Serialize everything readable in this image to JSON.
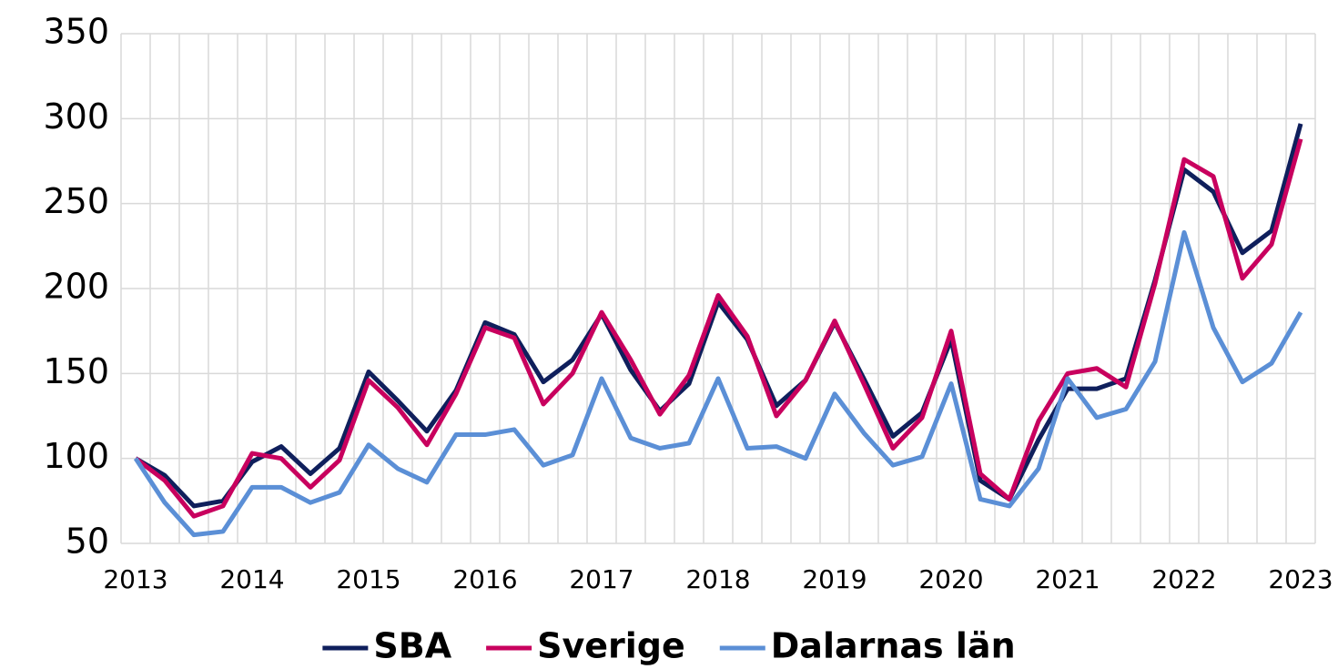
{
  "chart_data": {
    "type": "line",
    "categories": [
      "2013",
      null,
      null,
      null,
      "2014",
      null,
      null,
      null,
      "2015",
      null,
      null,
      null,
      "2016",
      null,
      null,
      null,
      "2017",
      null,
      null,
      null,
      "2018",
      null,
      null,
      null,
      "2019",
      null,
      null,
      null,
      "2020",
      null,
      null,
      null,
      "2021",
      null,
      null,
      null,
      "2022",
      null,
      null,
      null,
      "2023"
    ],
    "series": [
      {
        "name": "SBA",
        "color": "#0f1f5c",
        "values": [
          100,
          90,
          72,
          75,
          98,
          107,
          91,
          106,
          151,
          134,
          116,
          140,
          180,
          173,
          145,
          158,
          185,
          152,
          128,
          144,
          192,
          170,
          131,
          146,
          180,
          147,
          113,
          127,
          170,
          87,
          76,
          111,
          141,
          141,
          147,
          205,
          270,
          257,
          221,
          234,
          297
        ]
      },
      {
        "name": "Sverige",
        "color": "#c8005e",
        "values": [
          100,
          87,
          66,
          72,
          103,
          100,
          83,
          99,
          146,
          130,
          108,
          138,
          177,
          171,
          132,
          150,
          186,
          158,
          126,
          149,
          196,
          172,
          125,
          146,
          181,
          144,
          106,
          124,
          175,
          91,
          76,
          122,
          150,
          153,
          142,
          203,
          276,
          266,
          206,
          226,
          288
        ]
      },
      {
        "name": "Dalarnas län",
        "color": "#5b8fd6",
        "values": [
          100,
          74,
          55,
          57,
          83,
          83,
          74,
          80,
          108,
          94,
          86,
          114,
          114,
          117,
          96,
          102,
          147,
          112,
          106,
          109,
          147,
          106,
          107,
          100,
          138,
          115,
          96,
          101,
          144,
          76,
          72,
          94,
          147,
          124,
          129,
          157,
          233,
          177,
          145,
          156,
          186
        ]
      }
    ],
    "ylim": [
      50,
      350
    ],
    "yticks": [
      50,
      100,
      150,
      200,
      250,
      300,
      350
    ],
    "grid": true,
    "legend": "bottom"
  }
}
